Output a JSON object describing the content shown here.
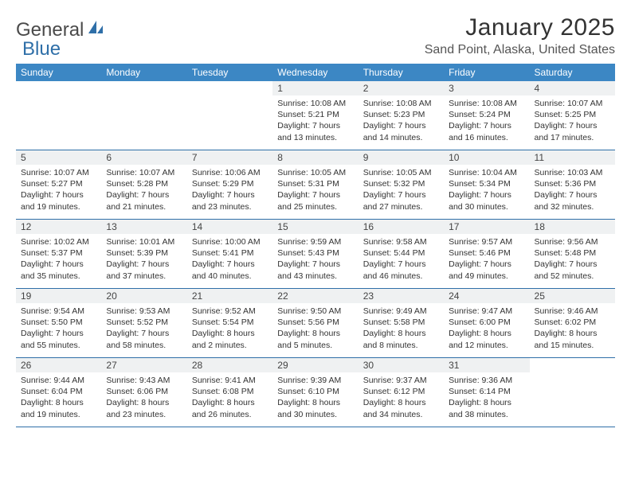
{
  "logo": {
    "general": "General",
    "blue": "Blue"
  },
  "title": "January 2025",
  "location": "Sand Point, Alaska, United States",
  "colors": {
    "header_bg": "#3c87c4",
    "header_text": "#ffffff",
    "daynum_bg": "#eff1f2",
    "border": "#2f6fa8",
    "logo_blue": "#2f6fa8",
    "logo_gray": "#4a4a4a"
  },
  "day_headers": [
    "Sunday",
    "Monday",
    "Tuesday",
    "Wednesday",
    "Thursday",
    "Friday",
    "Saturday"
  ],
  "weeks": [
    [
      {
        "empty": true
      },
      {
        "empty": true
      },
      {
        "empty": true
      },
      {
        "n": "1",
        "sr": "10:08 AM",
        "ss": "5:21 PM",
        "dl": "7 hours and 13 minutes."
      },
      {
        "n": "2",
        "sr": "10:08 AM",
        "ss": "5:23 PM",
        "dl": "7 hours and 14 minutes."
      },
      {
        "n": "3",
        "sr": "10:08 AM",
        "ss": "5:24 PM",
        "dl": "7 hours and 16 minutes."
      },
      {
        "n": "4",
        "sr": "10:07 AM",
        "ss": "5:25 PM",
        "dl": "7 hours and 17 minutes."
      }
    ],
    [
      {
        "n": "5",
        "sr": "10:07 AM",
        "ss": "5:27 PM",
        "dl": "7 hours and 19 minutes."
      },
      {
        "n": "6",
        "sr": "10:07 AM",
        "ss": "5:28 PM",
        "dl": "7 hours and 21 minutes."
      },
      {
        "n": "7",
        "sr": "10:06 AM",
        "ss": "5:29 PM",
        "dl": "7 hours and 23 minutes."
      },
      {
        "n": "8",
        "sr": "10:05 AM",
        "ss": "5:31 PM",
        "dl": "7 hours and 25 minutes."
      },
      {
        "n": "9",
        "sr": "10:05 AM",
        "ss": "5:32 PM",
        "dl": "7 hours and 27 minutes."
      },
      {
        "n": "10",
        "sr": "10:04 AM",
        "ss": "5:34 PM",
        "dl": "7 hours and 30 minutes."
      },
      {
        "n": "11",
        "sr": "10:03 AM",
        "ss": "5:36 PM",
        "dl": "7 hours and 32 minutes."
      }
    ],
    [
      {
        "n": "12",
        "sr": "10:02 AM",
        "ss": "5:37 PM",
        "dl": "7 hours and 35 minutes."
      },
      {
        "n": "13",
        "sr": "10:01 AM",
        "ss": "5:39 PM",
        "dl": "7 hours and 37 minutes."
      },
      {
        "n": "14",
        "sr": "10:00 AM",
        "ss": "5:41 PM",
        "dl": "7 hours and 40 minutes."
      },
      {
        "n": "15",
        "sr": "9:59 AM",
        "ss": "5:43 PM",
        "dl": "7 hours and 43 minutes."
      },
      {
        "n": "16",
        "sr": "9:58 AM",
        "ss": "5:44 PM",
        "dl": "7 hours and 46 minutes."
      },
      {
        "n": "17",
        "sr": "9:57 AM",
        "ss": "5:46 PM",
        "dl": "7 hours and 49 minutes."
      },
      {
        "n": "18",
        "sr": "9:56 AM",
        "ss": "5:48 PM",
        "dl": "7 hours and 52 minutes."
      }
    ],
    [
      {
        "n": "19",
        "sr": "9:54 AM",
        "ss": "5:50 PM",
        "dl": "7 hours and 55 minutes."
      },
      {
        "n": "20",
        "sr": "9:53 AM",
        "ss": "5:52 PM",
        "dl": "7 hours and 58 minutes."
      },
      {
        "n": "21",
        "sr": "9:52 AM",
        "ss": "5:54 PM",
        "dl": "8 hours and 2 minutes."
      },
      {
        "n": "22",
        "sr": "9:50 AM",
        "ss": "5:56 PM",
        "dl": "8 hours and 5 minutes."
      },
      {
        "n": "23",
        "sr": "9:49 AM",
        "ss": "5:58 PM",
        "dl": "8 hours and 8 minutes."
      },
      {
        "n": "24",
        "sr": "9:47 AM",
        "ss": "6:00 PM",
        "dl": "8 hours and 12 minutes."
      },
      {
        "n": "25",
        "sr": "9:46 AM",
        "ss": "6:02 PM",
        "dl": "8 hours and 15 minutes."
      }
    ],
    [
      {
        "n": "26",
        "sr": "9:44 AM",
        "ss": "6:04 PM",
        "dl": "8 hours and 19 minutes."
      },
      {
        "n": "27",
        "sr": "9:43 AM",
        "ss": "6:06 PM",
        "dl": "8 hours and 23 minutes."
      },
      {
        "n": "28",
        "sr": "9:41 AM",
        "ss": "6:08 PM",
        "dl": "8 hours and 26 minutes."
      },
      {
        "n": "29",
        "sr": "9:39 AM",
        "ss": "6:10 PM",
        "dl": "8 hours and 30 minutes."
      },
      {
        "n": "30",
        "sr": "9:37 AM",
        "ss": "6:12 PM",
        "dl": "8 hours and 34 minutes."
      },
      {
        "n": "31",
        "sr": "9:36 AM",
        "ss": "6:14 PM",
        "dl": "8 hours and 38 minutes."
      },
      {
        "empty": true
      }
    ]
  ],
  "labels": {
    "sunrise": "Sunrise:",
    "sunset": "Sunset:",
    "daylight": "Daylight:"
  }
}
